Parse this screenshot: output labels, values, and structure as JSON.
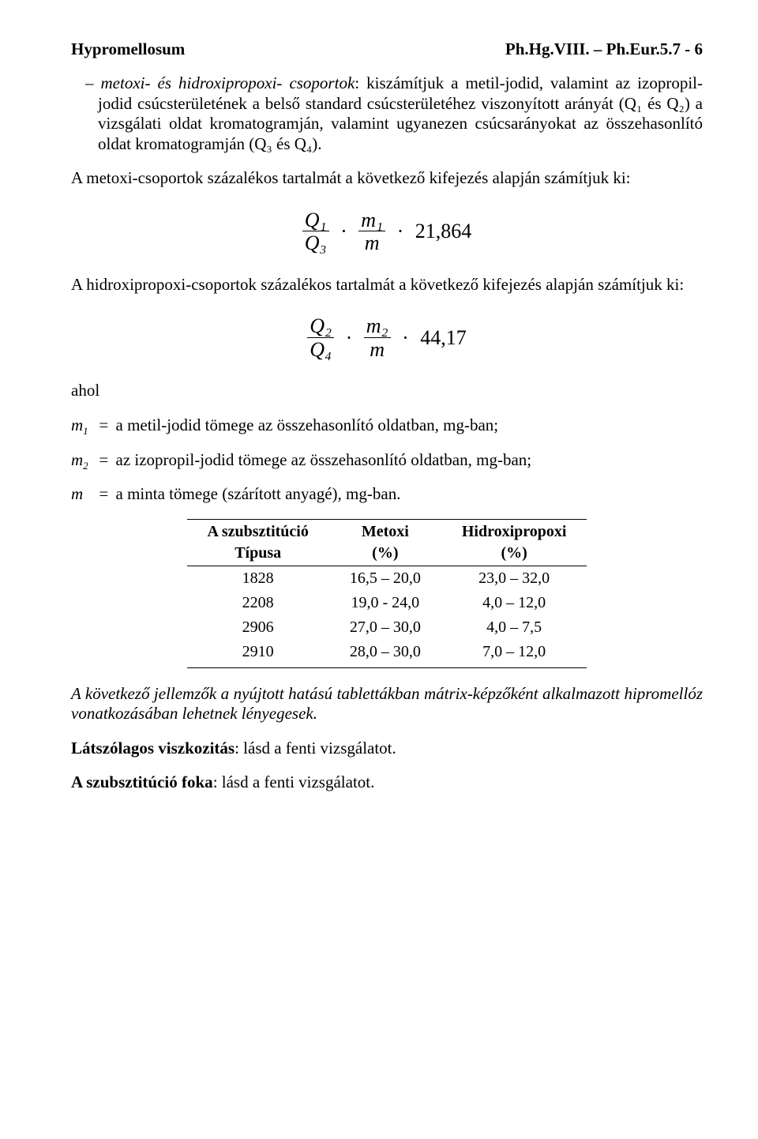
{
  "header": {
    "left": "Hypromellosum",
    "right": "Ph.Hg.VIII. – Ph.Eur.5.7 - 6"
  },
  "paragraphs": {
    "p1_prefix_italic": "metoxi- és hidroxipropoxi- csoportok",
    "p1_rest": ": kiszámítjuk a metil-jodid, valamint az izopropil-jodid csúcsterületének a belső standard csúcsterületéhez viszonyított arányát (Q₁ és Q₂) a vizsgálati oldat kromatogramján, valamint ugyanezen csúcsarányokat az összehasonlító oldat kromatogramján (Q₃ és Q₄).",
    "p2": "A metoxi-csoportok százalékos tartalmát a következő kifejezés alapján számítjuk ki:",
    "p3": "A hidroxipropoxi-csoportok százalékos tartalmát a következő kifejezés alapján számítjuk ki:",
    "ahol": "ahol",
    "defs": {
      "m1": "a metil-jodid tömege az összehasonlító oldatban, mg-ban;",
      "m2": "az izopropil-jodid tömege az összehasonlító oldatban, mg-ban;",
      "m": "a minta tömege (szárított anyagé), mg-ban."
    },
    "p4_italic": "A következő jellemzők a nyújtott hatású tablettákban mátrix-képzőként alkalmazott hipromellóz vonatkozásában lehetnek lényegesek.",
    "p5_bold": "Látszólagos viszkozitás",
    "p5_rest": ":  lásd a fenti vizsgálatot.",
    "p6_bold": "A szubsztitúció foka",
    "p6_rest": ":  lásd a fenti vizsgálatot."
  },
  "formula1": {
    "f1_num": "Q₁",
    "f1_den": "Q₃",
    "f2_num": "m₁",
    "f2_den": "m",
    "const": "21,864"
  },
  "formula2": {
    "f1_num": "Q₂",
    "f1_den": "Q₄",
    "f2_num": "m₂",
    "f2_den": "m",
    "const": "44,17"
  },
  "table": {
    "head": {
      "c1a": "A szubsztitúció",
      "c1b": "Típusa",
      "c2a": "Metoxi",
      "c2b": "(%)",
      "c3a": "Hidroxipropoxi",
      "c3b": "(%)"
    },
    "rows": [
      {
        "t": "1828",
        "m": "16,5 – 20,0",
        "h": "23,0 – 32,0"
      },
      {
        "t": "2208",
        "m": "19,0 -  24,0",
        "h": "4,0 – 12,0"
      },
      {
        "t": "2906",
        "m": "27,0 – 30,0",
        "h": "4,0 – 7,5"
      },
      {
        "t": "2910",
        "m": "28,0 – 30,0",
        "h": "7,0 – 12,0"
      }
    ]
  }
}
